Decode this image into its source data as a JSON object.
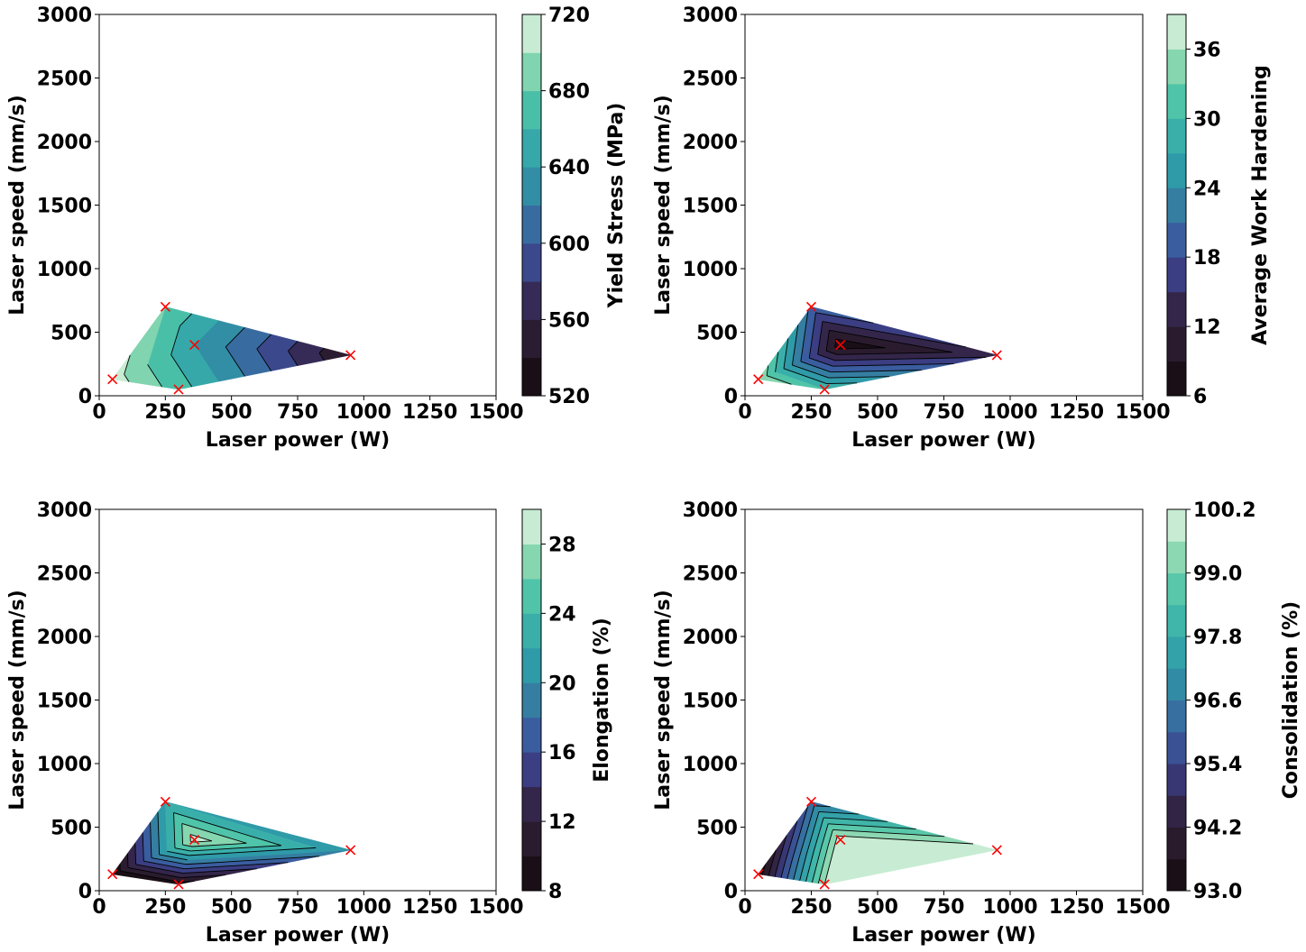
{
  "palette": [
    "#1a0f17",
    "#2a1c2e",
    "#34264a",
    "#3b3e82",
    "#3a5d9f",
    "#357ea2",
    "#2f9aa8",
    "#3aafaa",
    "#4fc4a8",
    "#86d6b0",
    "#c7ecd3"
  ],
  "marker_color": "#ff0000",
  "contour_line_color": "#000000",
  "chart_data": [
    {
      "type": "heatmap",
      "subtype": "filled-contour",
      "xlabel": "Laser power (W)",
      "ylabel": "Laser speed (mm/s)",
      "xlim": [
        0,
        1500
      ],
      "ylim": [
        0,
        3000
      ],
      "xticks": [
        "0",
        "250",
        "500",
        "750",
        "1000",
        "1250",
        "1500"
      ],
      "yticks": [
        "0",
        "500",
        "1000",
        "1500",
        "2000",
        "2500",
        "3000"
      ],
      "samples": [
        {
          "x": 50,
          "y": 130,
          "value": 710
        },
        {
          "x": 250,
          "y": 700,
          "value": 680
        },
        {
          "x": 300,
          "y": 50,
          "value": 670
        },
        {
          "x": 360,
          "y": 400,
          "value": 640
        },
        {
          "x": 950,
          "y": 320,
          "value": 540
        }
      ],
      "colorbar": {
        "label": "Yield Stress (MPa)",
        "min": 520,
        "max": 720,
        "levels": 10,
        "ticks": [
          "520",
          "560",
          "600",
          "640",
          "680",
          "720"
        ]
      }
    },
    {
      "type": "heatmap",
      "subtype": "filled-contour",
      "xlabel": "Laser power (W)",
      "ylabel": "Laser speed (mm/s)",
      "xlim": [
        0,
        1500
      ],
      "ylim": [
        0,
        3000
      ],
      "xticks": [
        "0",
        "250",
        "500",
        "750",
        "1000",
        "1250",
        "1500"
      ],
      "yticks": [
        "0",
        "500",
        "1000",
        "1500",
        "2000",
        "2500",
        "3000"
      ],
      "samples": [
        {
          "x": 50,
          "y": 130,
          "value": 36
        },
        {
          "x": 250,
          "y": 700,
          "value": 20
        },
        {
          "x": 300,
          "y": 50,
          "value": 30
        },
        {
          "x": 360,
          "y": 400,
          "value": 7
        },
        {
          "x": 950,
          "y": 320,
          "value": 14
        }
      ],
      "colorbar": {
        "label": "Average Work Hardening",
        "min": 6,
        "max": 39,
        "levels": 11,
        "ticks": [
          "6",
          "12",
          "18",
          "24",
          "30",
          "36"
        ]
      }
    },
    {
      "type": "heatmap",
      "subtype": "filled-contour",
      "xlabel": "Laser power (W)",
      "ylabel": "Laser speed (mm/s)",
      "xlim": [
        0,
        1500
      ],
      "ylim": [
        0,
        3000
      ],
      "xticks": [
        "0",
        "250",
        "500",
        "750",
        "1000",
        "1250",
        "1500"
      ],
      "yticks": [
        "0",
        "500",
        "1000",
        "1500",
        "2000",
        "2500",
        "3000"
      ],
      "samples": [
        {
          "x": 50,
          "y": 130,
          "value": 8
        },
        {
          "x": 250,
          "y": 700,
          "value": 22
        },
        {
          "x": 300,
          "y": 50,
          "value": 9
        },
        {
          "x": 360,
          "y": 400,
          "value": 29
        },
        {
          "x": 950,
          "y": 320,
          "value": 20
        }
      ],
      "colorbar": {
        "label": "Elongation (%)",
        "min": 8,
        "max": 30,
        "levels": 11,
        "ticks": [
          "8",
          "12",
          "16",
          "20",
          "24",
          "28"
        ]
      }
    },
    {
      "type": "heatmap",
      "subtype": "filled-contour",
      "xlabel": "Laser power (W)",
      "ylabel": "Laser speed (mm/s)",
      "xlim": [
        0,
        1500
      ],
      "ylim": [
        0,
        3000
      ],
      "xticks": [
        "0",
        "250",
        "500",
        "750",
        "1000",
        "1250",
        "1500"
      ],
      "yticks": [
        "0",
        "500",
        "1000",
        "1500",
        "2000",
        "2500",
        "3000"
      ],
      "samples": [
        {
          "x": 50,
          "y": 130,
          "value": 93.2
        },
        {
          "x": 250,
          "y": 700,
          "value": 96.2
        },
        {
          "x": 300,
          "y": 50,
          "value": 99.6
        },
        {
          "x": 360,
          "y": 400,
          "value": 100.0
        },
        {
          "x": 950,
          "y": 320,
          "value": 100.1
        }
      ],
      "colorbar": {
        "label": "Consolidation (%)",
        "min": 93.0,
        "max": 100.2,
        "levels": 12,
        "ticks": [
          "93.0",
          "94.2",
          "95.4",
          "96.6",
          "97.8",
          "99.0",
          "100.2"
        ]
      }
    }
  ]
}
